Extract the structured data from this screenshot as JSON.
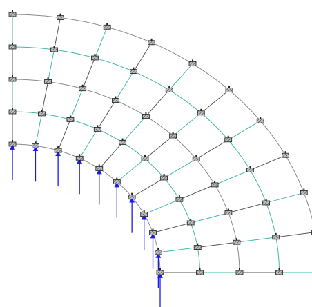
{
  "colors": {
    "background": "#ffffff",
    "arc_line": "#8a8a8a",
    "radial_line": "#555555",
    "mesh_accent": "#3fb8a6",
    "element_fill": "#bdbdbd",
    "element_stroke": "#222222",
    "element_hatch": "#333333",
    "load_arrow": "#1a1aee"
  },
  "icons": {
    "mesh_element": "hatched-rectangle-element",
    "load": "upward-arrow-load"
  },
  "mesh": {
    "rings": 5,
    "spokes": 11,
    "loaded_ring": "inner",
    "load_direction": "up"
  }
}
